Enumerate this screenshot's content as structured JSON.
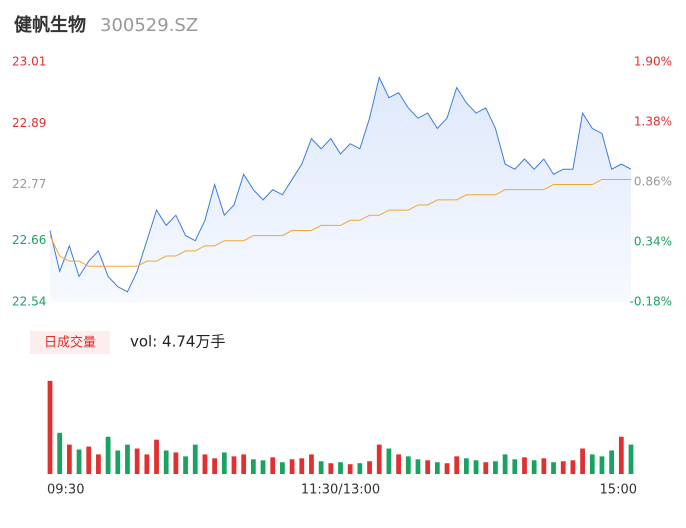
{
  "chart_data": {
    "type": "intraday",
    "title": "健帆生物",
    "subtitle": "300529.SZ",
    "volume_legend": "日成交量",
    "volume_text": "vol: 4.74万手",
    "xlim": [
      0,
      240
    ],
    "xticks": [
      {
        "value": 0,
        "label": "09:30"
      },
      {
        "value": 120,
        "label": "11:30/13:00"
      },
      {
        "value": 240,
        "label": "15:00"
      }
    ],
    "ylim": [
      22.54,
      23.01
    ],
    "yticks": [
      22.54,
      22.66,
      22.77,
      22.89,
      23.01
    ],
    "ytick_colors": [
      "#1aa260",
      "#1aa260",
      "#999999",
      "#e03030",
      "#e03030"
    ],
    "y2lim": [
      -0.18,
      1.9
    ],
    "y2ticks": [
      {
        "value": -0.18,
        "label": "-0.18%"
      },
      {
        "value": 0.34,
        "label": "0.34%"
      },
      {
        "value": 0.86,
        "label": "0.86%"
      },
      {
        "value": 1.38,
        "label": "1.38%"
      },
      {
        "value": 1.9,
        "label": "1.90%"
      }
    ],
    "vlim": [
      0,
      1000
    ],
    "up_color": "#e03030",
    "down_color": "#1aa260",
    "x": [
      0,
      4,
      8,
      12,
      16,
      20,
      24,
      28,
      32,
      36,
      40,
      44,
      48,
      52,
      56,
      60,
      64,
      68,
      72,
      76,
      80,
      84,
      88,
      92,
      96,
      100,
      104,
      108,
      112,
      116,
      120,
      124,
      128,
      132,
      136,
      140,
      144,
      148,
      152,
      156,
      160,
      164,
      168,
      172,
      176,
      180,
      184,
      188,
      192,
      196,
      200,
      204,
      208,
      212,
      216,
      220,
      224,
      228,
      232,
      236,
      240
    ],
    "series": [
      {
        "name": "price",
        "color": "#3d7be0",
        "values": [
          22.68,
          22.6,
          22.65,
          22.59,
          22.62,
          22.64,
          22.59,
          22.57,
          22.56,
          22.6,
          22.66,
          22.72,
          22.69,
          22.71,
          22.67,
          22.66,
          22.7,
          22.77,
          22.71,
          22.73,
          22.79,
          22.76,
          22.74,
          22.76,
          22.75,
          22.78,
          22.81,
          22.86,
          22.84,
          22.86,
          22.83,
          22.85,
          22.84,
          22.9,
          22.98,
          22.94,
          22.95,
          22.92,
          22.9,
          22.91,
          22.88,
          22.9,
          22.96,
          22.93,
          22.91,
          22.92,
          22.88,
          22.81,
          22.8,
          22.82,
          22.8,
          22.82,
          22.79,
          22.8,
          22.8,
          22.91,
          22.88,
          22.87,
          22.8,
          22.81,
          22.8
        ]
      },
      {
        "name": "average",
        "color": "#f0a830",
        "values": [
          22.67,
          22.63,
          22.62,
          22.62,
          22.61,
          22.61,
          22.61,
          22.61,
          22.61,
          22.61,
          22.62,
          22.62,
          22.63,
          22.63,
          22.64,
          22.64,
          22.65,
          22.65,
          22.66,
          22.66,
          22.66,
          22.67,
          22.67,
          22.67,
          22.67,
          22.68,
          22.68,
          22.68,
          22.69,
          22.69,
          22.69,
          22.7,
          22.7,
          22.71,
          22.71,
          22.72,
          22.72,
          22.72,
          22.73,
          22.73,
          22.74,
          22.74,
          22.74,
          22.75,
          22.75,
          22.75,
          22.75,
          22.76,
          22.76,
          22.76,
          22.76,
          22.76,
          22.77,
          22.77,
          22.77,
          22.77,
          22.77,
          22.78,
          22.78,
          22.78,
          22.78
        ]
      },
      {
        "name": "volume",
        "values": [
          950,
          420,
          300,
          250,
          280,
          200,
          380,
          240,
          300,
          260,
          200,
          350,
          240,
          220,
          180,
          300,
          200,
          160,
          220,
          180,
          200,
          150,
          140,
          170,
          120,
          150,
          160,
          200,
          130,
          110,
          120,
          100,
          110,
          130,
          300,
          260,
          200,
          180,
          150,
          140,
          120,
          110,
          180,
          160,
          140,
          120,
          130,
          200,
          150,
          170,
          140,
          160,
          120,
          130,
          140,
          260,
          200,
          180,
          240,
          380,
          300
        ]
      }
    ]
  }
}
